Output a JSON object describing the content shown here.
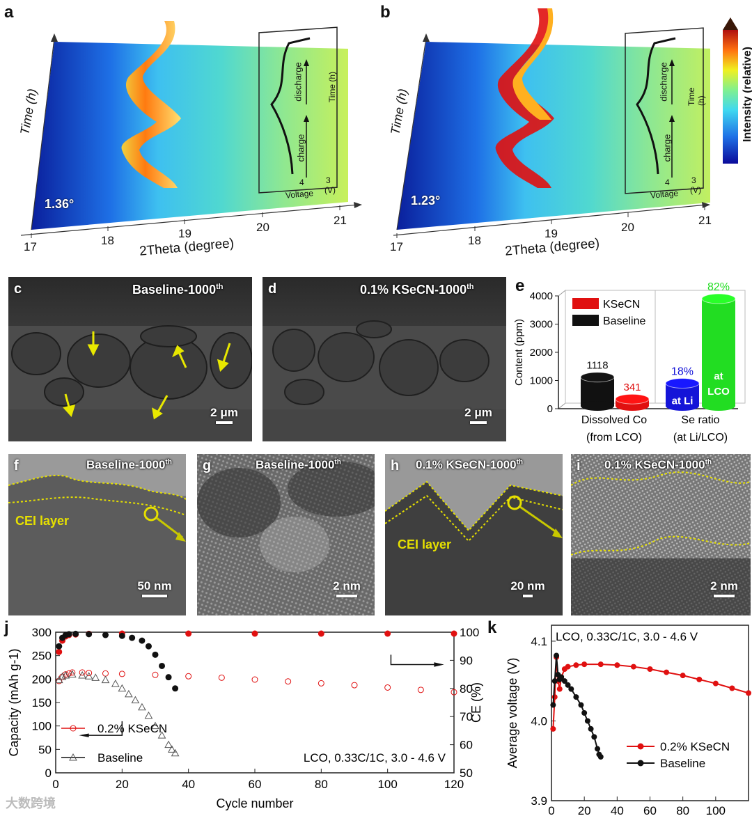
{
  "colors": {
    "baseline": "#111111",
    "ksecn": "#e01010",
    "cei": "#e6e000",
    "arrow": "#d8d800",
    "blue": "#1414d8",
    "green": "#22dd22"
  },
  "panel_a": {
    "label": "a",
    "angle": "1.36°",
    "ylabel": "Time (h)",
    "xlabel": "2Theta (degree)",
    "ticks": [
      "17",
      "18",
      "19",
      "20",
      "21"
    ],
    "inset": {
      "charge": "charge",
      "discharge": "discharge",
      "time": "Time (h)",
      "voltage": "Voltage",
      "v_unit": "(V)",
      "v4": "4",
      "v3": "3"
    }
  },
  "panel_b": {
    "label": "b",
    "angle": "1.23°",
    "ylabel": "Time (h)",
    "xlabel": "2Theta (degree)",
    "ticks": [
      "17",
      "18",
      "19",
      "20",
      "21"
    ],
    "inset": {
      "charge": "charge",
      "discharge": "discharge",
      "time": "Time (h)",
      "voltage": "Voltage",
      "v_unit": "(V)",
      "v4": "4",
      "v3": "3"
    }
  },
  "colorbar": {
    "label": "Intensity (relative)"
  },
  "panel_c": {
    "label": "c",
    "title": "Baseline-1000",
    "sup": "th",
    "scale": "2 μm"
  },
  "panel_d": {
    "label": "d",
    "title": "0.1% KSeCN-1000",
    "sup": "th",
    "scale": "2 μm"
  },
  "panel_f": {
    "label": "f",
    "title": "Baseline-1000",
    "sup": "th",
    "cei": "CEI layer",
    "scale": "50 nm"
  },
  "panel_g": {
    "label": "g",
    "title": "Baseline-1000",
    "sup": "th",
    "scale": "2 nm"
  },
  "panel_h": {
    "label": "h",
    "title": "0.1% KSeCN-1000",
    "sup": "th",
    "cei": "CEI layer",
    "scale": "20 nm"
  },
  "panel_i": {
    "label": "i",
    "title": "0.1% KSeCN-1000",
    "sup": "th",
    "scale": "2 nm"
  },
  "chart_data": [
    {
      "id": "e",
      "type": "bar",
      "label": "e",
      "ylabel": "Content (ppm)",
      "ylim": [
        0,
        4000
      ],
      "yticks": [
        0,
        1000,
        2000,
        3000,
        4000
      ],
      "legend": [
        "KSeCN",
        "Baseline"
      ],
      "groups": [
        {
          "label_line1": "Dissolved Co",
          "label_line2": "(from LCO)",
          "bars": [
            {
              "name": "Baseline",
              "value": 1118,
              "label": "1118"
            },
            {
              "name": "KSeCN",
              "value": 341,
              "label": "341"
            }
          ]
        },
        {
          "label_line1": "Se ratio",
          "label_line2": "(at Li/LCO)",
          "bars": [
            {
              "name": "at Li",
              "value": 900,
              "label": "18%",
              "inner": "at Li"
            },
            {
              "name": "at LCO",
              "value": 3900,
              "label": "82%",
              "inner1": "at",
              "inner2": "LCO"
            }
          ]
        }
      ]
    },
    {
      "id": "j",
      "type": "scatter",
      "label": "j",
      "title": "LCO, 0.33C/1C, 3.0 - 4.6 V",
      "xlabel": "Cycle number",
      "ylabel": "Capacity (mAh g-1)",
      "ylabel_right": "CE (%)",
      "xlim": [
        0,
        120
      ],
      "ylim": [
        0,
        300
      ],
      "ylim_right": [
        50,
        100
      ],
      "xticks": [
        0,
        20,
        40,
        60,
        80,
        100,
        120
      ],
      "yticks": [
        0,
        50,
        100,
        150,
        200,
        250,
        300
      ],
      "yticks_right": [
        50,
        60,
        70,
        80,
        90,
        100
      ],
      "legend": [
        "0.2% KSeCN",
        "Baseline"
      ],
      "series": [
        {
          "name": "0.2% KSeCN capacity",
          "axis": "left",
          "x": [
            1,
            2,
            3,
            4,
            5,
            8,
            10,
            15,
            20,
            30,
            40,
            50,
            60,
            70,
            80,
            90,
            100,
            110,
            120
          ],
          "y": [
            196,
            205,
            210,
            212,
            214,
            214,
            213,
            212,
            211,
            209,
            206,
            203,
            199,
            195,
            191,
            187,
            182,
            177,
            172
          ]
        },
        {
          "name": "Baseline capacity",
          "axis": "left",
          "x": [
            1,
            2,
            3,
            5,
            8,
            10,
            12,
            15,
            18,
            20,
            22,
            24,
            26,
            28,
            30,
            32,
            34,
            35,
            36
          ],
          "y": [
            198,
            205,
            208,
            210,
            208,
            206,
            203,
            198,
            190,
            180,
            168,
            155,
            140,
            122,
            100,
            80,
            60,
            50,
            42
          ]
        },
        {
          "name": "0.2% KSeCN CE",
          "axis": "right",
          "x": [
            1,
            2,
            3,
            4,
            6,
            10,
            20,
            40,
            60,
            80,
            100,
            120
          ],
          "y": [
            93,
            97,
            98.5,
            99,
            99.2,
            99.4,
            99.5,
            99.5,
            99.5,
            99.5,
            99.5,
            99.5
          ]
        },
        {
          "name": "Baseline CE",
          "axis": "right",
          "x": [
            1,
            2,
            3,
            4,
            6,
            10,
            15,
            20,
            23,
            26,
            28,
            30,
            32,
            34,
            36
          ],
          "y": [
            95,
            98,
            99,
            99.3,
            99.4,
            99.3,
            99,
            98.7,
            98,
            97,
            95,
            92,
            88,
            84,
            80
          ]
        }
      ],
      "arrows": [
        {
          "direction": "left",
          "axis": "Capacity"
        },
        {
          "direction": "right",
          "axis": "CE"
        }
      ]
    },
    {
      "id": "k",
      "type": "scatter",
      "label": "k",
      "title": "LCO, 0.33C/1C, 3.0 - 4.6 V",
      "xlabel": "Cycle number",
      "ylabel": "Average voltage (V)",
      "xlim": [
        0,
        120
      ],
      "ylim": [
        3.9,
        4.12
      ],
      "xticks": [
        0,
        20,
        40,
        60,
        80,
        100
      ],
      "yticks": [
        3.9,
        4.0,
        4.1
      ],
      "legend": [
        "0.2% KSeCN",
        "Baseline"
      ],
      "series": [
        {
          "name": "0.2% KSeCN",
          "x": [
            1,
            2,
            3,
            4,
            5,
            6,
            8,
            10,
            15,
            20,
            30,
            40,
            50,
            60,
            70,
            80,
            90,
            100,
            110,
            120
          ],
          "y": [
            3.99,
            4.03,
            4.08,
            4.05,
            4.04,
            4.055,
            4.065,
            4.068,
            4.07,
            4.071,
            4.071,
            4.07,
            4.068,
            4.065,
            4.061,
            4.057,
            4.052,
            4.047,
            4.041,
            4.035
          ]
        },
        {
          "name": "Baseline",
          "x": [
            1,
            2,
            3,
            4,
            5,
            6,
            8,
            10,
            12,
            15,
            18,
            20,
            22,
            24,
            26,
            28,
            29,
            30
          ],
          "y": [
            4.02,
            4.05,
            4.082,
            4.058,
            4.052,
            4.055,
            4.05,
            4.045,
            4.04,
            4.03,
            4.02,
            4.01,
            4.0,
            3.99,
            3.98,
            3.965,
            3.958,
            3.955
          ]
        }
      ]
    }
  ],
  "watermark": "大数跨境"
}
